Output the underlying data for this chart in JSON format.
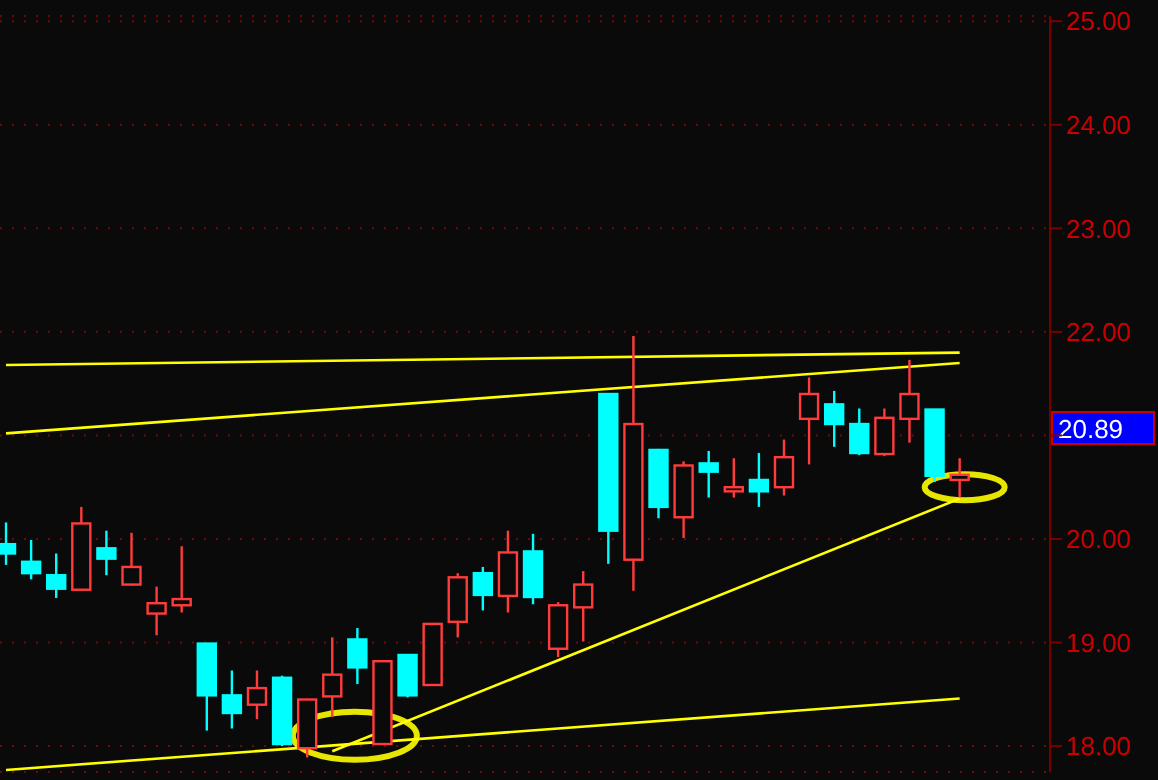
{
  "chart_data": {
    "type": "candlestick",
    "tick_labels": "y",
    "grid": "y",
    "categories": [
      null,
      null,
      null,
      null,
      null,
      null,
      null,
      null,
      null,
      null,
      null,
      null,
      null,
      null,
      null,
      null,
      null,
      null,
      null,
      null,
      null,
      null,
      null,
      null,
      null,
      null,
      null,
      null,
      null,
      null,
      null,
      null,
      null,
      null,
      null,
      null,
      null,
      null,
      null
    ],
    "ohlc": [
      [
        19.95,
        20.16,
        19.75,
        19.86
      ],
      [
        19.78,
        19.99,
        19.61,
        19.67
      ],
      [
        19.65,
        19.86,
        19.43,
        19.52
      ],
      [
        19.51,
        20.31,
        19.5,
        20.15
      ],
      [
        19.91,
        20.08,
        19.65,
        19.81
      ],
      [
        19.56,
        20.06,
        19.55,
        19.73
      ],
      [
        19.28,
        19.54,
        19.07,
        19.38
      ],
      [
        19.36,
        19.93,
        19.29,
        19.42
      ],
      [
        18.99,
        18.99,
        18.15,
        18.49
      ],
      [
        18.49,
        18.73,
        18.17,
        18.32
      ],
      [
        18.4,
        18.73,
        18.26,
        18.56
      ],
      [
        18.66,
        18.68,
        18.0,
        18.02
      ],
      [
        17.98,
        18.45,
        17.89,
        18.45
      ],
      [
        18.48,
        19.05,
        18.28,
        18.69
      ],
      [
        19.03,
        19.14,
        18.6,
        18.76
      ],
      [
        18.02,
        18.83,
        18.01,
        18.82
      ],
      [
        18.88,
        18.89,
        18.47,
        18.49
      ],
      [
        18.59,
        19.19,
        18.58,
        19.18
      ],
      [
        19.2,
        19.67,
        19.05,
        19.63
      ],
      [
        19.67,
        19.73,
        19.31,
        19.46
      ],
      [
        19.45,
        20.08,
        19.29,
        19.87
      ],
      [
        19.88,
        20.05,
        19.37,
        19.44
      ],
      [
        18.94,
        19.39,
        18.86,
        19.36
      ],
      [
        19.34,
        19.69,
        19.01,
        19.56
      ],
      [
        21.4,
        21.41,
        19.76,
        20.08
      ],
      [
        19.8,
        21.96,
        19.5,
        21.11
      ],
      [
        20.86,
        20.87,
        20.2,
        20.31
      ],
      [
        20.21,
        20.75,
        20.01,
        20.71
      ],
      [
        20.73,
        20.85,
        20.4,
        20.65
      ],
      [
        20.46,
        20.78,
        20.4,
        20.5
      ],
      [
        20.57,
        20.83,
        20.31,
        20.46
      ],
      [
        20.5,
        20.96,
        20.42,
        20.79
      ],
      [
        21.16,
        21.56,
        20.72,
        21.4
      ],
      [
        21.3,
        21.43,
        20.89,
        21.11
      ],
      [
        21.11,
        21.26,
        20.81,
        20.83
      ],
      [
        20.82,
        21.26,
        20.8,
        21.17
      ],
      [
        21.16,
        21.73,
        20.93,
        21.4
      ],
      [
        21.25,
        21.25,
        20.55,
        20.61
      ],
      [
        20.57,
        20.78,
        20.4,
        20.62
      ]
    ],
    "colors": [
      "#00ffff",
      "#00ffff",
      "#00ffff",
      "#ff3b3b",
      "#00ffff",
      "#ff3b3b",
      "#ff3b3b",
      "#ff3b3b",
      "#00ffff",
      "#00ffff",
      "#ff3b3b",
      "#00ffff",
      "#ff3b3b",
      "#ff3b3b",
      "#00ffff",
      "#ff3b3b",
      "#00ffff",
      "#ff3b3b",
      "#ff3b3b",
      "#00ffff",
      "#ff3b3b",
      "#00ffff",
      "#ff3b3b",
      "#ff3b3b",
      "#00ffff",
      "#ff3b3b",
      "#00ffff",
      "#ff3b3b",
      "#00ffff",
      "#ff3b3b",
      "#00ffff",
      "#ff3b3b",
      "#ff3b3b",
      "#00ffff",
      "#00ffff",
      "#ff3b3b",
      "#ff3b3b",
      "#00ffff",
      "#ff3b3b"
    ],
    "series": [
      {
        "type": "line",
        "color": "#ffff00",
        "values": [
          21.68,
          null,
          null,
          null,
          null,
          null,
          null,
          null,
          null,
          null,
          null,
          null,
          null,
          null,
          null,
          null,
          null,
          null,
          null,
          null,
          null,
          null,
          null,
          null,
          null,
          null,
          null,
          null,
          null,
          null,
          null,
          null,
          null,
          null,
          null,
          null,
          null,
          null,
          21.8
        ]
      },
      {
        "type": "line",
        "color": "#ffff00",
        "values": [
          21.02,
          null,
          null,
          null,
          null,
          null,
          null,
          null,
          null,
          null,
          null,
          null,
          null,
          null,
          null,
          null,
          null,
          null,
          null,
          null,
          null,
          null,
          null,
          null,
          null,
          null,
          null,
          null,
          null,
          null,
          null,
          null,
          null,
          null,
          null,
          null,
          null,
          null,
          21.7
        ]
      },
      {
        "type": "line",
        "color": "#ffff00",
        "values": [
          null,
          null,
          null,
          null,
          null,
          null,
          null,
          null,
          null,
          null,
          null,
          null,
          null,
          17.95,
          null,
          null,
          null,
          null,
          null,
          null,
          null,
          null,
          null,
          null,
          null,
          null,
          null,
          null,
          null,
          null,
          null,
          null,
          null,
          null,
          null,
          null,
          null,
          null,
          20.39
        ]
      },
      {
        "type": "line",
        "color": "#ffff00",
        "values": [
          17.77,
          null,
          null,
          null,
          null,
          null,
          null,
          null,
          null,
          null,
          null,
          null,
          null,
          null,
          null,
          null,
          null,
          null,
          null,
          null,
          null,
          null,
          null,
          null,
          null,
          null,
          null,
          null,
          null,
          null,
          null,
          null,
          null,
          null,
          null,
          null,
          null,
          null,
          18.46
        ]
      }
    ],
    "ylim": [
      17.75,
      25.05
    ],
    "yticks": [
      {
        "value": 18,
        "label": "18.00"
      },
      {
        "value": 19,
        "label": "19.00"
      },
      {
        "value": 20,
        "label": "20.00"
      },
      {
        "value": 21,
        "label": null
      },
      {
        "value": 22,
        "label": "22.00"
      },
      {
        "value": 23,
        "label": "23.00"
      },
      {
        "value": 24,
        "label": "24.00"
      },
      {
        "value": 25,
        "label": "25.00"
      }
    ],
    "annotations": [
      "20.89"
    ]
  }
}
